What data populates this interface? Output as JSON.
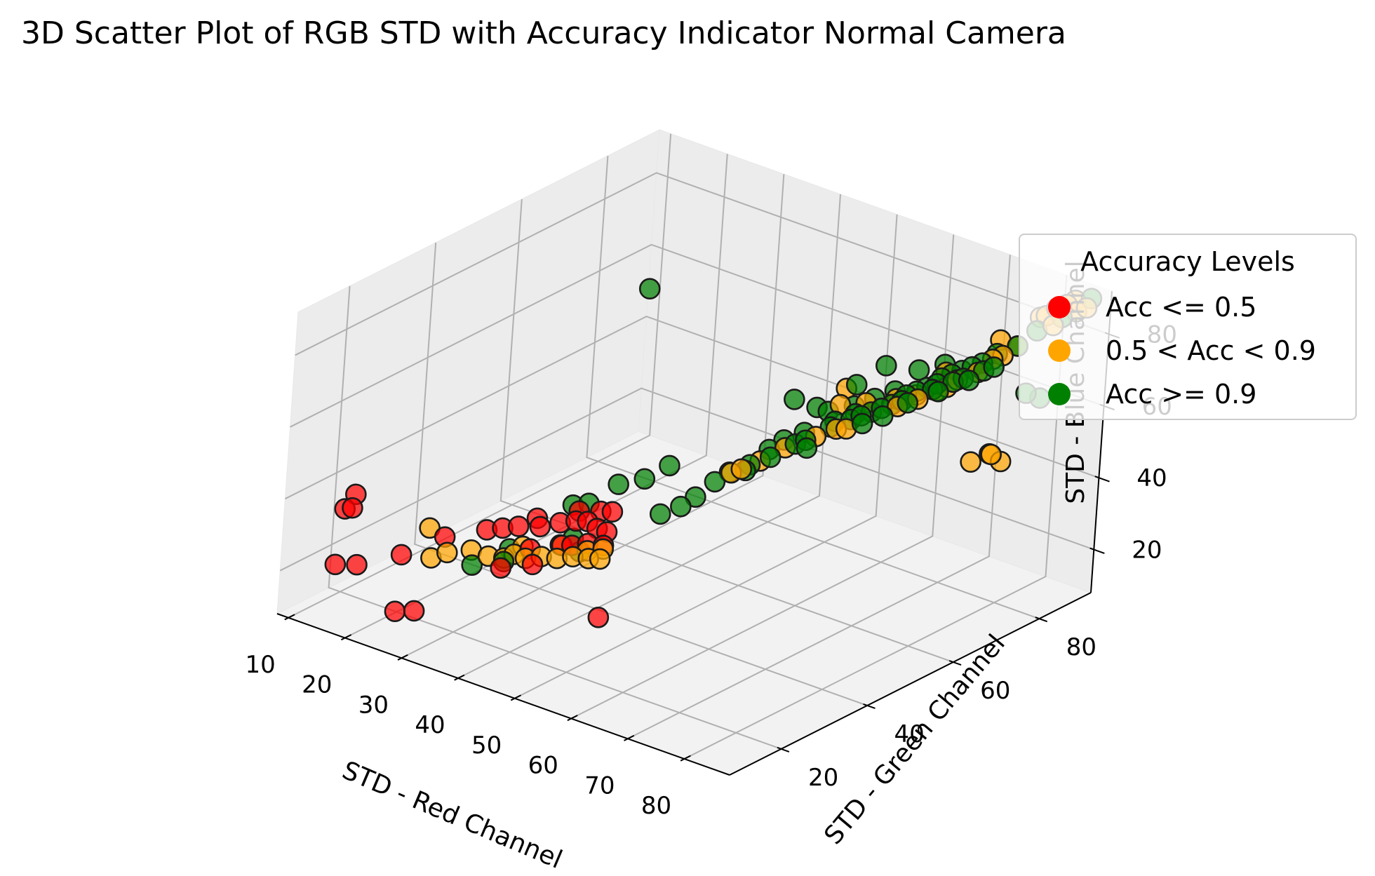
{
  "chart_data": {
    "type": "scatter",
    "title": "3D Scatter Plot of RGB STD with Accuracy Indicator Normal Camera",
    "xlabel": "STD - Red Channel",
    "ylabel": "STD - Green Channel",
    "zlabel": "STD - Blue Channel",
    "xticks": [
      10,
      20,
      30,
      40,
      50,
      60,
      70,
      80
    ],
    "yticks": [
      20,
      40,
      60,
      80
    ],
    "zticks": [
      20,
      40,
      60,
      80
    ],
    "xlim": [
      8,
      88
    ],
    "ylim": [
      8,
      92
    ],
    "zlim": [
      8,
      92
    ],
    "grid": true,
    "legend": {
      "title": "Accuracy Levels",
      "placement": "right",
      "entries": [
        {
          "label": "Acc <= 0.5",
          "color": "#ff0000"
        },
        {
          "label": "0.5 < Acc < 0.9",
          "color": "#ffa500"
        },
        {
          "label": "Acc >= 0.9",
          "color": "#008000"
        }
      ]
    },
    "series": [
      {
        "name": "Acc <= 0.5",
        "color": "#ff0000",
        "points": [
          [
            13,
            18,
            38
          ],
          [
            14,
            16,
            36
          ],
          [
            12,
            17,
            34
          ],
          [
            16,
            10,
            25
          ],
          [
            19,
            11,
            26
          ],
          [
            23,
            16,
            28
          ],
          [
            28,
            13,
            17
          ],
          [
            24,
            14,
            14
          ],
          [
            26,
            22,
            31
          ],
          [
            31,
            25,
            34
          ],
          [
            35,
            27,
            36
          ],
          [
            38,
            28,
            37
          ],
          [
            40,
            30,
            38
          ],
          [
            42,
            31,
            39
          ],
          [
            44,
            31,
            40
          ],
          [
            45,
            32,
            38
          ],
          [
            33,
            26,
            35
          ],
          [
            36,
            30,
            37
          ],
          [
            41,
            33,
            40
          ],
          [
            44,
            34,
            41
          ],
          [
            46,
            34,
            42
          ],
          [
            38,
            26,
            32
          ],
          [
            42,
            28,
            34
          ],
          [
            45,
            30,
            35
          ],
          [
            47,
            31,
            35
          ],
          [
            52,
            24,
            22
          ],
          [
            40,
            24,
            30
          ],
          [
            46,
            33,
            37
          ],
          [
            36,
            22,
            28
          ],
          [
            43,
            29,
            34
          ]
        ]
      },
      {
        "name": "0.5 < Acc < 0.9",
        "color": "#ffa500",
        "points": [
          [
            24,
            21,
            33
          ],
          [
            26,
            19,
            27
          ],
          [
            30,
            23,
            29
          ],
          [
            28,
            20,
            29
          ],
          [
            33,
            23,
            29
          ],
          [
            35,
            24,
            29
          ],
          [
            36,
            25,
            30
          ],
          [
            38,
            25,
            30
          ],
          [
            40,
            26,
            31
          ],
          [
            42,
            27,
            31
          ],
          [
            44,
            28,
            32
          ],
          [
            46,
            29,
            32
          ],
          [
            48,
            29,
            33
          ],
          [
            36,
            27,
            31
          ],
          [
            41,
            29,
            33
          ],
          [
            45,
            30,
            33
          ],
          [
            47,
            31,
            34
          ],
          [
            56,
            48,
            50
          ],
          [
            57,
            49,
            51
          ],
          [
            63,
            58,
            58
          ],
          [
            65,
            60,
            60
          ],
          [
            66,
            61,
            60
          ],
          [
            64,
            62,
            65
          ],
          [
            67,
            64,
            66
          ],
          [
            70,
            67,
            67
          ],
          [
            72,
            69,
            68
          ],
          [
            74,
            71,
            69
          ],
          [
            71,
            66,
            66
          ],
          [
            73,
            68,
            68
          ],
          [
            75,
            72,
            70
          ],
          [
            76,
            73,
            72
          ],
          [
            78,
            75,
            74
          ],
          [
            80,
            78,
            78
          ],
          [
            81,
            80,
            80
          ],
          [
            79,
            77,
            77
          ],
          [
            82,
            85,
            86
          ],
          [
            84,
            87,
            89
          ],
          [
            83,
            86,
            88
          ],
          [
            84,
            84,
            85
          ],
          [
            85,
            88,
            87
          ],
          [
            86,
            89,
            88
          ],
          [
            84,
            89,
            89
          ],
          [
            81,
            85,
            85
          ],
          [
            81,
            75,
            53
          ],
          [
            83,
            75,
            52
          ],
          [
            80,
            72,
            52
          ],
          [
            82,
            74,
            54
          ],
          [
            62,
            66,
            66
          ],
          [
            78,
            80,
            80
          ],
          [
            74,
            73,
            73
          ],
          [
            60,
            55,
            55
          ],
          [
            58,
            52,
            52
          ]
        ]
      },
      {
        "name": "Acc >= 0.9",
        "color": "#008000",
        "points": [
          [
            31,
            22,
            26
          ],
          [
            35,
            24,
            28
          ],
          [
            41,
            32,
            33
          ],
          [
            50,
            40,
            40
          ],
          [
            52,
            42,
            42
          ],
          [
            53,
            44,
            44
          ],
          [
            44,
            44,
            44
          ],
          [
            46,
            47,
            47
          ],
          [
            55,
            49,
            49
          ],
          [
            57,
            51,
            51
          ],
          [
            59,
            53,
            53
          ],
          [
            61,
            56,
            56
          ],
          [
            62,
            57,
            57
          ],
          [
            64,
            60,
            60
          ],
          [
            66,
            62,
            62
          ],
          [
            68,
            64,
            64
          ],
          [
            70,
            66,
            66
          ],
          [
            71,
            67,
            67
          ],
          [
            73,
            70,
            70
          ],
          [
            74,
            71,
            71
          ],
          [
            76,
            74,
            74
          ],
          [
            78,
            76,
            76
          ],
          [
            62,
            62,
            62
          ],
          [
            65,
            64,
            64
          ],
          [
            67,
            66,
            66
          ],
          [
            69,
            68,
            68
          ],
          [
            72,
            69,
            69
          ],
          [
            75,
            73,
            73
          ],
          [
            77,
            75,
            75
          ],
          [
            79,
            78,
            78
          ],
          [
            81,
            80,
            80
          ],
          [
            82,
            83,
            83
          ],
          [
            84,
            86,
            86
          ],
          [
            86,
            90,
            90
          ],
          [
            56,
            62,
            62
          ],
          [
            60,
            62,
            62
          ],
          [
            63,
            67,
            67
          ],
          [
            65,
            71,
            71
          ],
          [
            70,
            72,
            72
          ],
          [
            73,
            74,
            74
          ],
          [
            61,
            58,
            58
          ],
          [
            64,
            61,
            61
          ],
          [
            67,
            63,
            63
          ],
          [
            69,
            65,
            65
          ],
          [
            71,
            68,
            68
          ],
          [
            74,
            72,
            72
          ],
          [
            77,
            73,
            73
          ],
          [
            79,
            75,
            75
          ],
          [
            83,
            80,
            68
          ],
          [
            84,
            82,
            66
          ],
          [
            24,
            70,
            70
          ],
          [
            37,
            37,
            37
          ],
          [
            39,
            38,
            38
          ],
          [
            41,
            42,
            42
          ],
          [
            33,
            28,
            28
          ],
          [
            43,
            31,
            31
          ],
          [
            66,
            63,
            63
          ],
          [
            68,
            62,
            62
          ],
          [
            70,
            64,
            64
          ],
          [
            72,
            67,
            67
          ],
          [
            63,
            56,
            56
          ],
          [
            59,
            56,
            56
          ],
          [
            75,
            70,
            70
          ],
          [
            78,
            73,
            73
          ],
          [
            80,
            76,
            76
          ],
          [
            76,
            72,
            72
          ],
          [
            74,
            70,
            70
          ],
          [
            58,
            54,
            54
          ],
          [
            54,
            47,
            47
          ],
          [
            57,
            50,
            50
          ]
        ]
      }
    ]
  }
}
